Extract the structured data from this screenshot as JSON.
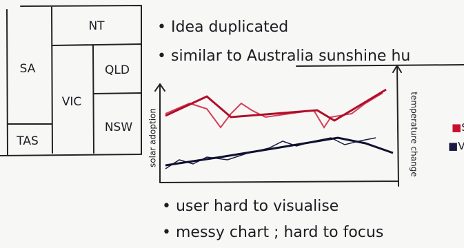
{
  "treemap": {
    "cells": [
      "NT",
      "SA",
      "VIC",
      "QLD",
      "NSW",
      "TAS"
    ]
  },
  "notes": [
    "Idea duplicated",
    "similar to Australia sunshine hu"
  ],
  "sketch": {
    "y_label": "solar adoption",
    "y2_label": "temperature change",
    "legend": [
      "S",
      "V"
    ]
  },
  "issues": [
    "user hard to visualise",
    "messy chart ; hard to focus"
  ]
}
